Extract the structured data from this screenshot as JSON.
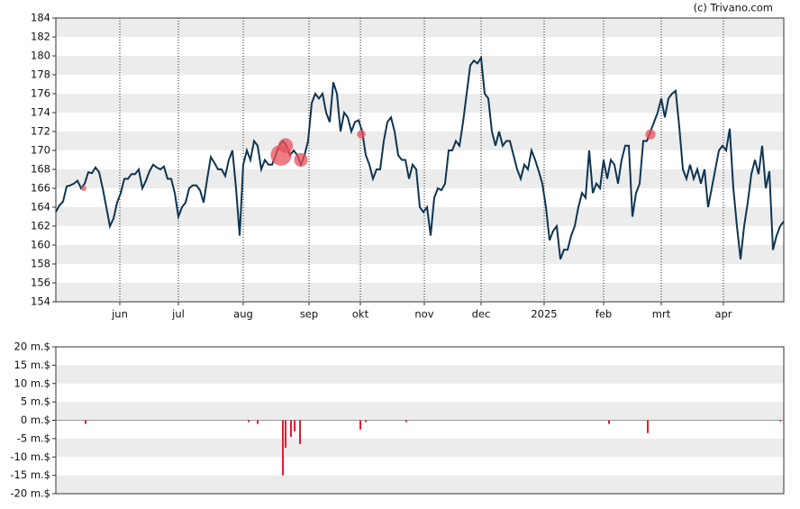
{
  "source": "(c) Trivano.com",
  "chart_data": [
    {
      "type": "line",
      "color": "#0d3552",
      "xlim": [
        0,
        202
      ],
      "xticks": [
        {
          "value": 17.75,
          "label": "jun"
        },
        {
          "value": 34,
          "label": "jul"
        },
        {
          "value": 52,
          "label": "aug"
        },
        {
          "value": 70.25,
          "label": "sep"
        },
        {
          "value": 84.5,
          "label": "okt"
        },
        {
          "value": 102.25,
          "label": "nov"
        },
        {
          "value": 118,
          "label": "dec"
        },
        {
          "value": 135.5,
          "label": "2025"
        },
        {
          "value": 152,
          "label": "feb"
        },
        {
          "value": 168,
          "label": "mrt"
        },
        {
          "value": 185.25,
          "label": "apr"
        }
      ],
      "ylim": [
        154,
        184
      ],
      "yticks": [
        154,
        156,
        158,
        160,
        162,
        164,
        166,
        168,
        170,
        172,
        174,
        176,
        178,
        180,
        182,
        184
      ],
      "values": [
        163.5,
        164.2,
        164.6,
        166.2,
        166.3,
        166.5,
        166.8,
        166,
        166.5,
        167.7,
        167.6,
        168.2,
        167.7,
        166,
        164,
        162,
        162.8,
        164.5,
        165.5,
        167,
        167,
        167.5,
        167.5,
        168,
        166,
        166.8,
        167.8,
        168.5,
        168.2,
        168,
        168.3,
        167,
        167,
        165.5,
        163,
        164,
        164.5,
        166,
        166.3,
        166.3,
        165.8,
        164.5,
        167,
        169.3,
        168.7,
        168,
        168,
        167.3,
        169,
        170,
        166,
        161,
        168.5,
        170,
        169,
        171,
        170.5,
        168,
        169,
        168.5,
        168.5,
        169.5,
        170.5,
        171,
        170.5,
        169.5,
        170,
        169.5,
        168.5,
        169.5,
        171,
        175,
        176,
        175.5,
        176,
        174,
        173,
        177.2,
        176,
        172,
        174,
        173.5,
        172,
        173,
        173.2,
        172,
        169.5,
        168.5,
        167,
        168,
        168,
        171,
        173,
        173.5,
        172,
        169.5,
        169,
        169,
        167,
        168.5,
        168,
        164,
        163.5,
        164,
        161,
        165,
        166,
        165.8,
        166.5,
        170,
        170,
        171,
        170.5,
        173,
        176,
        179,
        179.5,
        179.2,
        179.8,
        176,
        175.5,
        172,
        170.5,
        172,
        170.5,
        171,
        171,
        169.5,
        168,
        167,
        168.5,
        168,
        170,
        169,
        167.8,
        166.5,
        164,
        160.5,
        161.5,
        162,
        158.5,
        159.5,
        159.5,
        161,
        162,
        164,
        165.5,
        165,
        170,
        165.5,
        166.5,
        166,
        169,
        167,
        169,
        168.5,
        166.5,
        169,
        170.5,
        170.5,
        163,
        165.5,
        166.5,
        171,
        171,
        172,
        173,
        174,
        175.5,
        173.5,
        175.5,
        176,
        176.3,
        172.5,
        168,
        167,
        168.5,
        167,
        168,
        166.5,
        168,
        164,
        166,
        168,
        170,
        170.5,
        170,
        172.3,
        166,
        162,
        158.5,
        162,
        164.5,
        167.5,
        169,
        167.5,
        170.5,
        166,
        167.8,
        159.5,
        161,
        162,
        162.5
      ],
      "points": {
        "color": "#e8505b",
        "x": [
          7.75,
          62.5,
          63.75,
          68,
          84.75,
          165
        ],
        "values": [
          166,
          169.5,
          170.5,
          169,
          171.7,
          171.7
        ],
        "sizes": [
          1,
          15,
          7.5,
          6.5,
          2.5,
          3.5
        ]
      },
      "grid": true
    },
    {
      "type": "bar",
      "color": "#e8192c",
      "xlim": [
        0,
        202
      ],
      "ylim": [
        -20,
        20
      ],
      "yticks": [
        {
          "value": -20,
          "label": "-20 m.$"
        },
        {
          "value": -15,
          "label": "-15 m.$"
        },
        {
          "value": -10,
          "label": "-10 m.$"
        },
        {
          "value": -5,
          "label": "-5 m.$"
        },
        {
          "value": 0,
          "label": "0 m.$"
        },
        {
          "value": 5,
          "label": "5 m.$"
        },
        {
          "value": 10,
          "label": "10 m.$"
        },
        {
          "value": 15,
          "label": "15 m.$"
        },
        {
          "value": 20,
          "label": "20 m.$"
        }
      ],
      "x": [
        8.25,
        53.5,
        56,
        63,
        63.75,
        65.25,
        66.25,
        67.75,
        84.5,
        86,
        97.25,
        153.5,
        164.25,
        201
      ],
      "values": [
        -1,
        -0.5,
        -1,
        -15,
        -7.5,
        -4.5,
        -3,
        -6.5,
        -2.5,
        -0.5,
        -0.5,
        -1,
        -3.5,
        -0.3
      ],
      "grid": true
    }
  ]
}
